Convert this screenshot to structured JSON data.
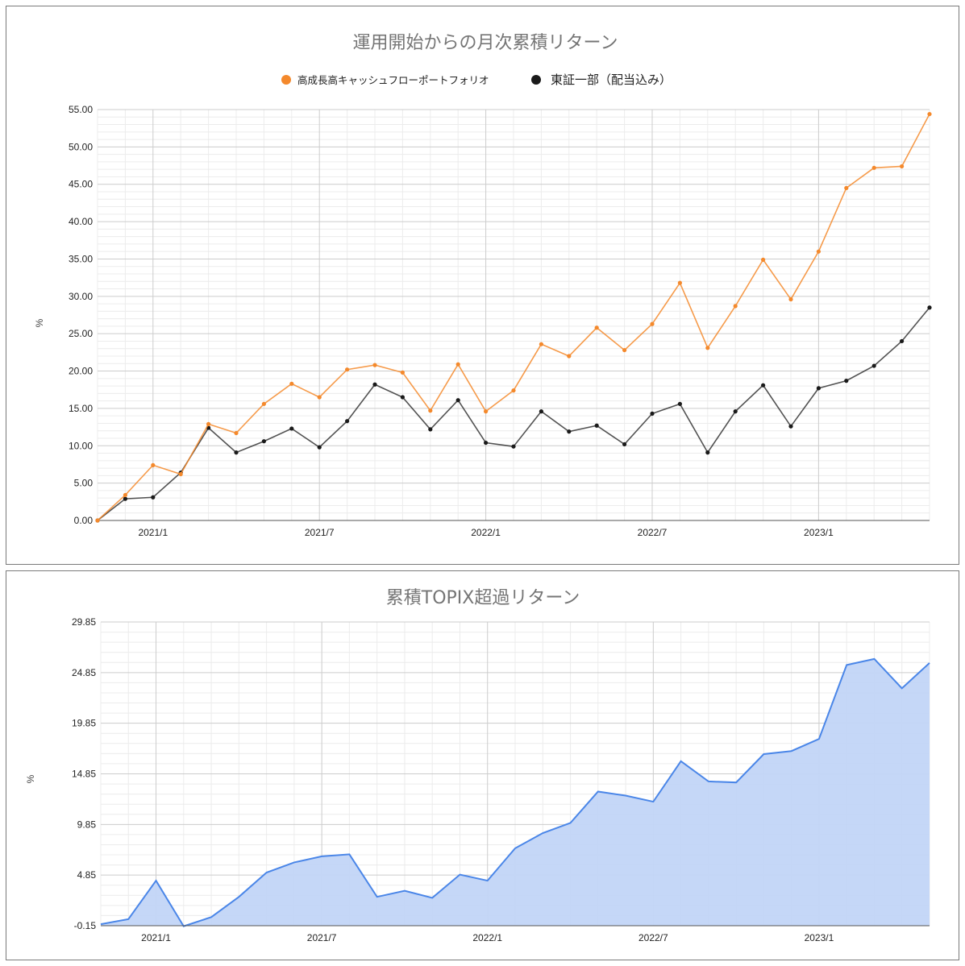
{
  "colors": {
    "portfolio": "#f4892c",
    "topix": "#1a1a1a",
    "excess_line": "#4a86e8",
    "excess_fill": "#c2d5f7",
    "grid_major": "#cccccc",
    "grid_minor": "#ececec"
  },
  "chart_data": [
    {
      "type": "line",
      "title": "運用開始からの月次累積リターン",
      "ylabel": "%",
      "ylim": [
        0,
        55
      ],
      "yticks": [
        "0.00",
        "5.00",
        "10.00",
        "15.00",
        "20.00",
        "25.00",
        "30.00",
        "35.00",
        "40.00",
        "45.00",
        "50.00",
        "55.00"
      ],
      "x_tick_labels": [
        "2021/1",
        "2021/7",
        "2022/1",
        "2022/7",
        "2023/1"
      ],
      "x": [
        "2020/11",
        "2020/12",
        "2021/1",
        "2021/2",
        "2021/3",
        "2021/4",
        "2021/5",
        "2021/6",
        "2021/7",
        "2021/8",
        "2021/9",
        "2021/10",
        "2021/11",
        "2021/12",
        "2022/1",
        "2022/2",
        "2022/3",
        "2022/4",
        "2022/5",
        "2022/6",
        "2022/7",
        "2022/8",
        "2022/9",
        "2022/10",
        "2022/11",
        "2022/12",
        "2023/1",
        "2023/2",
        "2023/3",
        "2023/4",
        "2023/5"
      ],
      "legend_position": "top",
      "grid": true,
      "series": [
        {
          "name": "高成長高キャッシュフローポートフォリオ",
          "values": [
            0.0,
            3.4,
            7.4,
            6.2,
            12.9,
            11.7,
            15.6,
            18.3,
            16.5,
            20.2,
            20.8,
            19.8,
            14.7,
            20.9,
            14.6,
            17.4,
            23.6,
            22.0,
            25.8,
            22.8,
            26.3,
            31.8,
            23.1,
            28.7,
            34.9,
            29.6,
            36.0,
            44.5,
            47.2,
            47.4,
            54.4
          ]
        },
        {
          "name": "東証一部（配当込み）",
          "values": [
            0.0,
            2.9,
            3.1,
            6.4,
            12.4,
            9.1,
            10.6,
            12.3,
            9.8,
            13.3,
            18.2,
            16.5,
            12.2,
            16.1,
            10.4,
            9.9,
            14.6,
            11.9,
            12.7,
            10.2,
            14.3,
            15.6,
            9.1,
            14.6,
            18.1,
            12.6,
            17.7,
            18.7,
            20.7,
            24.0,
            28.5
          ]
        }
      ]
    },
    {
      "type": "area",
      "title": "累積TOPIX超過リターン",
      "ylabel": "%",
      "ylim": [
        -0.15,
        29.85
      ],
      "yticks": [
        "-0.15",
        "4.85",
        "9.85",
        "14.85",
        "19.85",
        "24.85",
        "29.85"
      ],
      "x_tick_labels": [
        "2021/1",
        "2021/7",
        "2022/1",
        "2022/7",
        "2023/1"
      ],
      "x": [
        "2020/11",
        "2020/12",
        "2021/1",
        "2021/2",
        "2021/3",
        "2021/4",
        "2021/5",
        "2021/6",
        "2021/7",
        "2021/8",
        "2021/9",
        "2021/10",
        "2021/11",
        "2021/12",
        "2022/1",
        "2022/2",
        "2022/3",
        "2022/4",
        "2022/5",
        "2022/6",
        "2022/7",
        "2022/8",
        "2022/9",
        "2022/10",
        "2022/11",
        "2022/12",
        "2023/1",
        "2023/2",
        "2023/3",
        "2023/4",
        "2023/5"
      ],
      "grid": true,
      "series": [
        {
          "values": [
            0.0,
            0.5,
            4.3,
            -0.2,
            0.7,
            2.7,
            5.1,
            6.1,
            6.7,
            6.9,
            2.7,
            3.3,
            2.6,
            4.9,
            4.3,
            7.5,
            9.0,
            10.0,
            13.1,
            12.7,
            12.1,
            16.1,
            14.1,
            14.0,
            16.8,
            17.1,
            18.3,
            25.6,
            26.2,
            23.3,
            25.8
          ]
        }
      ]
    }
  ]
}
